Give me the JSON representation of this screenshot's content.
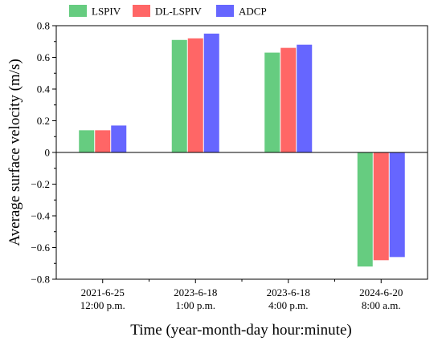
{
  "chart_data": {
    "type": "bar",
    "categories": [
      [
        "2021-6-25",
        "12:00 p.m."
      ],
      [
        "2023-6-18",
        "1:00 p.m."
      ],
      [
        "2023-6-18",
        "4:00 p.m."
      ],
      [
        "2024-6-20",
        "8:00 a.m."
      ]
    ],
    "series": [
      {
        "name": "LSPIV",
        "color": "#66cc80",
        "values": [
          0.14,
          0.71,
          0.63,
          -0.72
        ]
      },
      {
        "name": "DL-LSPIV",
        "color": "#ff6666",
        "values": [
          0.14,
          0.72,
          0.66,
          -0.68
        ]
      },
      {
        "name": "ADCP",
        "color": "#6666ff",
        "values": [
          0.17,
          0.75,
          0.68,
          -0.66
        ]
      }
    ],
    "xlabel": "Time (year-month-day hour:minute)",
    "ylabel": "Average surface velocity (m/s)",
    "ylim": [
      -0.8,
      0.8
    ],
    "yticks": [
      -0.8,
      -0.6,
      -0.4,
      -0.2,
      0,
      0.2,
      0.4,
      0.6,
      0.8
    ],
    "ytick_labels": [
      "−0.8",
      "−0.6",
      "−0.4",
      "−0.2",
      "0",
      "0.2",
      "0.4",
      "0.6",
      "0.8"
    ],
    "grid": false,
    "legend_position": "top"
  }
}
